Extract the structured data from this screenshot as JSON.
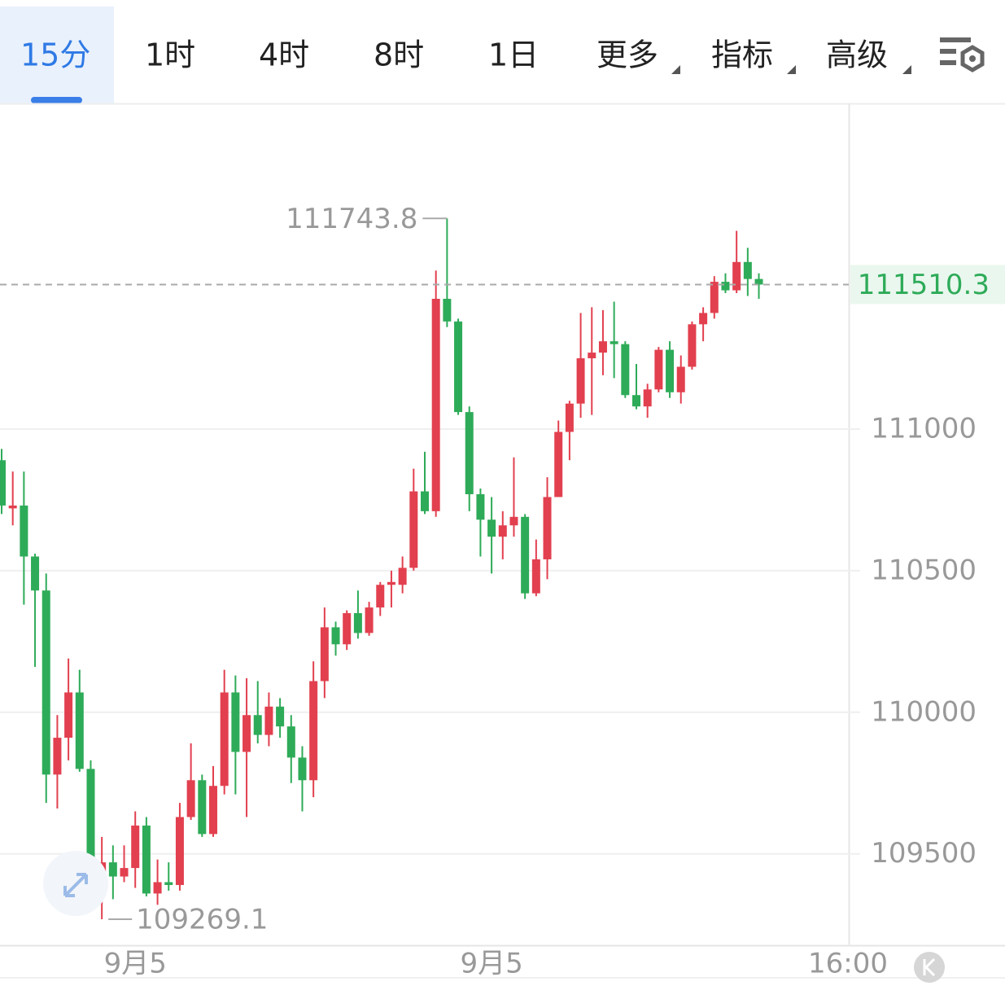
{
  "tabs": [
    "15分",
    "1时",
    "4时",
    "8时",
    "1日",
    "更多",
    "指标",
    "高级"
  ],
  "chart_data": {
    "type": "candlestick",
    "up_color": "#e2404f",
    "down_color": "#2eab58",
    "open": [
      110890,
      110720,
      110730,
      110550,
      110430,
      109780,
      109910,
      110070,
      109800,
      109420,
      109470,
      109420,
      109450,
      109600,
      109360,
      109400,
      109390,
      109630,
      109760,
      109570,
      109740,
      110070,
      109860,
      109990,
      109920,
      110020,
      109950,
      109840,
      109760,
      110110,
      110300,
      110240,
      110350,
      110280,
      110370,
      110450,
      110450,
      110510,
      110780,
      110710,
      111460,
      111380,
      111060,
      110770,
      110680,
      110620,
      110660,
      110690,
      110420,
      110540,
      110760,
      110990,
      111090,
      111250,
      111270,
      111310,
      111300,
      111120,
      111080,
      111140,
      111280,
      111130,
      111220,
      111370,
      111410,
      111520,
      111490,
      111590,
      111530
    ],
    "high": [
      110930,
      110850,
      110850,
      110560,
      110490,
      109990,
      110190,
      110150,
      109830,
      109560,
      109530,
      109530,
      109650,
      109630,
      109480,
      109470,
      109680,
      109890,
      109780,
      109810,
      110150,
      110130,
      110120,
      110110,
      110070,
      110050,
      109990,
      109880,
      110180,
      110370,
      110320,
      110360,
      110430,
      110390,
      110460,
      110500,
      110550,
      110860,
      110920,
      111560,
      111743.8,
      111390,
      111080,
      110790,
      110760,
      110710,
      110900,
      110700,
      110610,
      110830,
      111030,
      111100,
      111410,
      111430,
      111420,
      111450,
      111310,
      111230,
      111160,
      111290,
      111310,
      111260,
      111380,
      111430,
      111540,
      111550,
      111700,
      111640,
      111550
    ],
    "low": [
      110700,
      110660,
      110380,
      110160,
      109680,
      109660,
      109830,
      109790,
      109350,
      109269.1,
      109340,
      109400,
      109380,
      109350,
      109320,
      109370,
      109370,
      109620,
      109560,
      109560,
      109710,
      109710,
      109630,
      109890,
      109880,
      109910,
      109750,
      109650,
      109700,
      110050,
      110200,
      110220,
      110260,
      110270,
      110340,
      110370,
      110420,
      110500,
      110700,
      110690,
      111360,
      111050,
      110710,
      110550,
      110490,
      110540,
      110620,
      110400,
      110410,
      110470,
      110760,
      110890,
      111040,
      111050,
      111190,
      111180,
      111110,
      111070,
      111040,
      111130,
      111110,
      111090,
      111210,
      111310,
      111390,
      111480,
      111480,
      111470,
      111460
    ],
    "close": [
      110730,
      110730,
      110550,
      110430,
      109780,
      109910,
      110070,
      109800,
      109420,
      109470,
      109420,
      109450,
      109600,
      109360,
      109400,
      109390,
      109630,
      109760,
      109570,
      109740,
      110070,
      109860,
      109990,
      109920,
      110020,
      109950,
      109840,
      109760,
      110110,
      110300,
      110240,
      110350,
      110280,
      110370,
      110450,
      110460,
      110510,
      110780,
      110710,
      111460,
      111380,
      111060,
      110770,
      110680,
      110620,
      110660,
      110690,
      110420,
      110540,
      110760,
      110990,
      111090,
      111250,
      111270,
      111310,
      111300,
      111120,
      111080,
      111140,
      111280,
      111130,
      111220,
      111370,
      111410,
      111520,
      111490,
      111590,
      111530,
      111510.3
    ],
    "ylim": [
      109180,
      112150
    ],
    "yticks": [
      109500,
      110000,
      110500,
      111000
    ],
    "xlim": [
      0,
      76
    ],
    "xticks": [
      {
        "value": 12,
        "label": "9月5"
      },
      {
        "value": 44,
        "label": "9月5"
      },
      {
        "value": 76,
        "label": "16:00"
      }
    ],
    "grid": true
  }
}
